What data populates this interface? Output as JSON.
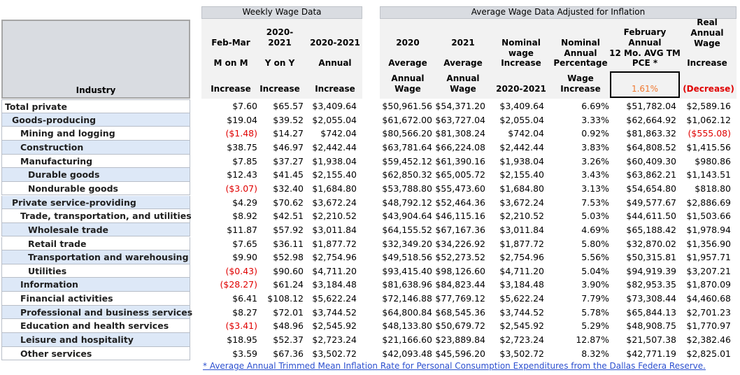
{
  "group_headers": {
    "weekly": "Weekly Wage Data",
    "adjusted": "Average Wage Data Adjusted for Inflation"
  },
  "industry_header": "Industry",
  "columns": [
    {
      "key": "c1",
      "lines": [
        "Feb-Mar",
        "",
        "M on M",
        "",
        "Increase"
      ]
    },
    {
      "key": "c2",
      "lines": [
        "2020-",
        "2021",
        "Y on Y",
        "",
        "Increase"
      ]
    },
    {
      "key": "c3",
      "lines": [
        "",
        "2020-2021",
        "Annual",
        "",
        "Increase"
      ]
    },
    {
      "key": "c4",
      "lines": [
        "",
        "2020",
        "Average",
        "Annual",
        "Wage"
      ]
    },
    {
      "key": "c5",
      "lines": [
        "",
        "2021",
        "Average",
        "Annual",
        "Wage"
      ]
    },
    {
      "key": "c6",
      "lines": [
        "",
        "Nominal",
        "wage",
        "Increase",
        "",
        "2020-2021"
      ]
    },
    {
      "key": "c7",
      "lines": [
        "",
        "Nominal",
        "Annual",
        "Percentage",
        "Wage",
        "Increase"
      ]
    },
    {
      "key": "c8",
      "lines": [
        "February",
        "Annual",
        "12 Mo. AVG TM",
        "PCE *"
      ]
    },
    {
      "key": "c9",
      "lines": [
        "Real",
        "Annual",
        "Wage",
        "",
        "Increase"
      ]
    }
  ],
  "pce_rate": "1.61%",
  "decrease_label": "(Decrease)",
  "rows": [
    {
      "industry": "Total private",
      "indent": 0,
      "values": [
        "$7.60",
        "$65.57",
        "$3,409.64",
        "$50,961.56",
        "$54,371.20",
        "$3,409.64",
        "6.69%",
        "$51,782.04",
        "$2,589.16"
      ]
    },
    {
      "industry": "Goods-producing",
      "indent": 1,
      "values": [
        "$19.04",
        "$39.52",
        "$2,055.04",
        "$61,672.00",
        "$63,727.04",
        "$2,055.04",
        "3.33%",
        "$62,664.92",
        "$1,062.12"
      ]
    },
    {
      "industry": "Mining and logging",
      "indent": 2,
      "values": [
        "($1.48)",
        "$14.27",
        "$742.04",
        "$80,566.20",
        "$81,308.24",
        "$742.04",
        "0.92%",
        "$81,863.32",
        "($555.08)"
      ]
    },
    {
      "industry": "Construction",
      "indent": 2,
      "values": [
        "$38.75",
        "$46.97",
        "$2,442.44",
        "$63,781.64",
        "$66,224.08",
        "$2,442.44",
        "3.83%",
        "$64,808.52",
        "$1,415.56"
      ]
    },
    {
      "industry": "Manufacturing",
      "indent": 2,
      "values": [
        "$7.85",
        "$37.27",
        "$1,938.04",
        "$59,452.12",
        "$61,390.16",
        "$1,938.04",
        "3.26%",
        "$60,409.30",
        "$980.86"
      ]
    },
    {
      "industry": "Durable goods",
      "indent": 3,
      "values": [
        "$12.43",
        "$41.45",
        "$2,155.40",
        "$62,850.32",
        "$65,005.72",
        "$2,155.40",
        "3.43%",
        "$63,862.21",
        "$1,143.51"
      ]
    },
    {
      "industry": "Nondurable goods",
      "indent": 3,
      "values": [
        "($3.07)",
        "$32.40",
        "$1,684.80",
        "$53,788.80",
        "$55,473.60",
        "$1,684.80",
        "3.13%",
        "$54,654.80",
        "$818.80"
      ]
    },
    {
      "industry": "Private service-providing",
      "indent": 1,
      "values": [
        "$4.29",
        "$70.62",
        "$3,672.24",
        "$48,792.12",
        "$52,464.36",
        "$3,672.24",
        "7.53%",
        "$49,577.67",
        "$2,886.69"
      ]
    },
    {
      "industry": "Trade, transportation, and utilities",
      "indent": 2,
      "values": [
        "$8.92",
        "$42.51",
        "$2,210.52",
        "$43,904.64",
        "$46,115.16",
        "$2,210.52",
        "5.03%",
        "$44,611.50",
        "$1,503.66"
      ]
    },
    {
      "industry": "Wholesale trade",
      "indent": 3,
      "values": [
        "$11.87",
        "$57.92",
        "$3,011.84",
        "$64,155.52",
        "$67,167.36",
        "$3,011.84",
        "4.69%",
        "$65,188.42",
        "$1,978.94"
      ]
    },
    {
      "industry": "Retail trade",
      "indent": 3,
      "values": [
        "$7.65",
        "$36.11",
        "$1,877.72",
        "$32,349.20",
        "$34,226.92",
        "$1,877.72",
        "5.80%",
        "$32,870.02",
        "$1,356.90"
      ]
    },
    {
      "industry": "Transportation and warehousing",
      "indent": 3,
      "values": [
        "$9.90",
        "$52.98",
        "$2,754.96",
        "$49,518.56",
        "$52,273.52",
        "$2,754.96",
        "5.56%",
        "$50,315.81",
        "$1,957.71"
      ]
    },
    {
      "industry": "Utilities",
      "indent": 3,
      "values": [
        "($0.43)",
        "$90.60",
        "$4,711.20",
        "$93,415.40",
        "$98,126.60",
        "$4,711.20",
        "5.04%",
        "$94,919.39",
        "$3,207.21"
      ]
    },
    {
      "industry": "Information",
      "indent": 2,
      "values": [
        "($28.27)",
        "$61.24",
        "$3,184.48",
        "$81,638.96",
        "$84,823.44",
        "$3,184.48",
        "3.90%",
        "$82,953.35",
        "$1,870.09"
      ]
    },
    {
      "industry": "Financial activities",
      "indent": 2,
      "values": [
        "$6.41",
        "$108.12",
        "$5,622.24",
        "$72,146.88",
        "$77,769.12",
        "$5,622.24",
        "7.79%",
        "$73,308.44",
        "$4,460.68"
      ]
    },
    {
      "industry": "Professional and business services",
      "indent": 2,
      "values": [
        "$8.27",
        "$72.01",
        "$3,744.52",
        "$64,800.84",
        "$68,545.36",
        "$3,744.52",
        "5.78%",
        "$65,844.13",
        "$2,701.23"
      ]
    },
    {
      "industry": "Education and health services",
      "indent": 2,
      "values": [
        "($3.41)",
        "$48.96",
        "$2,545.92",
        "$48,133.80",
        "$50,679.72",
        "$2,545.92",
        "5.29%",
        "$48,908.75",
        "$1,770.97"
      ]
    },
    {
      "industry": "Leisure and hospitality",
      "indent": 2,
      "values": [
        "$18.95",
        "$52.37",
        "$2,723.24",
        "$21,166.60",
        "$23,889.84",
        "$2,723.24",
        "12.87%",
        "$21,507.38",
        "$2,382.46"
      ]
    },
    {
      "industry": "Other services",
      "indent": 2,
      "values": [
        "$3.59",
        "$67.36",
        "$3,502.72",
        "$42,093.48",
        "$45,596.20",
        "$3,502.72",
        "8.32%",
        "$42,771.19",
        "$2,825.01"
      ]
    }
  ],
  "footnote": "* Average Annual Trimmed Mean Inflation Rate for Personal Consumption Expenditures from the Dallas Federa Reserve.",
  "colors": {
    "header_bg": "#d9dce1",
    "label_bg_alt": "#dde8f7",
    "negative": "#e00000",
    "pce": "#f07830",
    "footnote": "#2b4fcf"
  }
}
